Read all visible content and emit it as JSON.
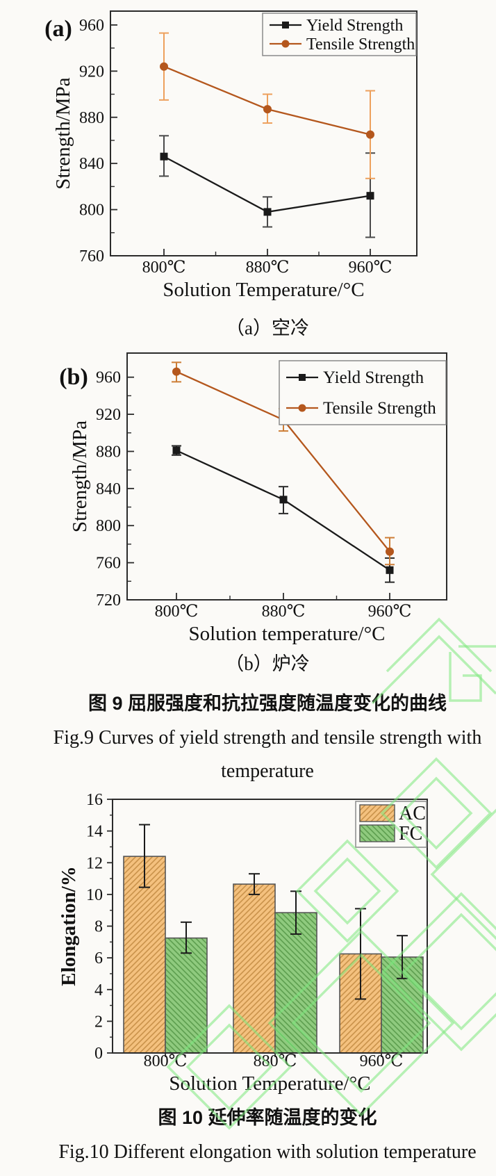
{
  "page": {
    "background": "#fbfaf7",
    "watermark_color": "#7de87d",
    "axis_color": "#2b2b2b"
  },
  "figure9": {
    "caption_a_cn": "（a）空冷",
    "caption_b_cn": "（b）炉冷",
    "caption_cn": "图 9 屈服强度和抗拉强度随温度变化的曲线",
    "caption_en_line1": "Fig.9 Curves of yield strength and tensile strength with",
    "caption_en_line2": "temperature"
  },
  "figure10": {
    "caption_cn": "图 10 延伸率随温度的变化",
    "caption_en": "Fig.10 Different elongation with solution temperature"
  },
  "chart_data": [
    {
      "id": "fig9a",
      "type": "line",
      "panel_label": "(a)",
      "title": "",
      "categories": [
        "800℃",
        "880℃",
        "960℃"
      ],
      "series": [
        {
          "name": "Yield Strength",
          "color": "#1a1a1a",
          "err_color": "#4a4a4a",
          "marker": "square",
          "values": [
            846,
            798,
            812
          ],
          "err_low": [
            829,
            785,
            776
          ],
          "err_high": [
            864,
            811,
            849
          ]
        },
        {
          "name": "Tensile Strength",
          "color": "#b4571d",
          "err_color": "#eda05c",
          "marker": "circle",
          "values": [
            924,
            887,
            865
          ],
          "err_low": [
            895,
            875,
            827
          ],
          "err_high": [
            953,
            900,
            903
          ]
        }
      ],
      "xlabel": "Solution Temperature/°C",
      "ylabel": "Strength/MPa",
      "ylim": [
        760,
        972
      ],
      "yticks": [
        760,
        800,
        840,
        880,
        920,
        960
      ],
      "grid": false,
      "legend_position": "top-right"
    },
    {
      "id": "fig9b",
      "type": "line",
      "panel_label": "(b)",
      "title": "",
      "categories": [
        "800℃",
        "880℃",
        "960℃"
      ],
      "series": [
        {
          "name": "Yield Strength",
          "color": "#1a1a1a",
          "err_color": "#2a2a2a",
          "marker": "square",
          "values": [
            881,
            828,
            752
          ],
          "err_low": [
            876,
            813,
            739
          ],
          "err_high": [
            886,
            842,
            765
          ]
        },
        {
          "name": "Tensile Strength",
          "color": "#b4571d",
          "err_color": "#cd7d35",
          "marker": "circle",
          "values": [
            966,
            914,
            772
          ],
          "err_low": [
            955,
            902,
            758
          ],
          "err_high": [
            976,
            926,
            787
          ]
        }
      ],
      "xlabel": "Solution temperature/°C",
      "ylabel": "Strength/MPa",
      "ylim": [
        720,
        986
      ],
      "yticks": [
        720,
        760,
        800,
        840,
        880,
        920,
        960
      ],
      "grid": false,
      "legend_position": "top-right"
    },
    {
      "id": "fig10",
      "type": "bar",
      "title": "",
      "categories": [
        "800℃",
        "880℃",
        "960℃"
      ],
      "series": [
        {
          "name": "AC",
          "fill": "#f4c17e",
          "hatch": "#c9924a",
          "hatch_dir": "/",
          "err_color": "#1a1a1a",
          "values": [
            12.4,
            10.65,
            6.25
          ],
          "err_low": [
            10.45,
            10.0,
            3.4
          ],
          "err_high": [
            14.4,
            11.3,
            9.1
          ]
        },
        {
          "name": "FC",
          "fill": "#8fca7e",
          "hatch": "#5d9e4f",
          "hatch_dir": "\\",
          "err_color": "#1a1a1a",
          "values": [
            7.25,
            8.85,
            6.05
          ],
          "err_low": [
            6.3,
            7.5,
            4.7
          ],
          "err_high": [
            8.25,
            10.2,
            7.4
          ]
        }
      ],
      "xlabel": "Solution Temperature/°C",
      "ylabel": "Elongation/%",
      "ylim": [
        0,
        16
      ],
      "yticks": [
        0,
        2,
        4,
        6,
        8,
        10,
        12,
        14,
        16
      ],
      "grid": false,
      "legend_position": "top-right"
    }
  ]
}
